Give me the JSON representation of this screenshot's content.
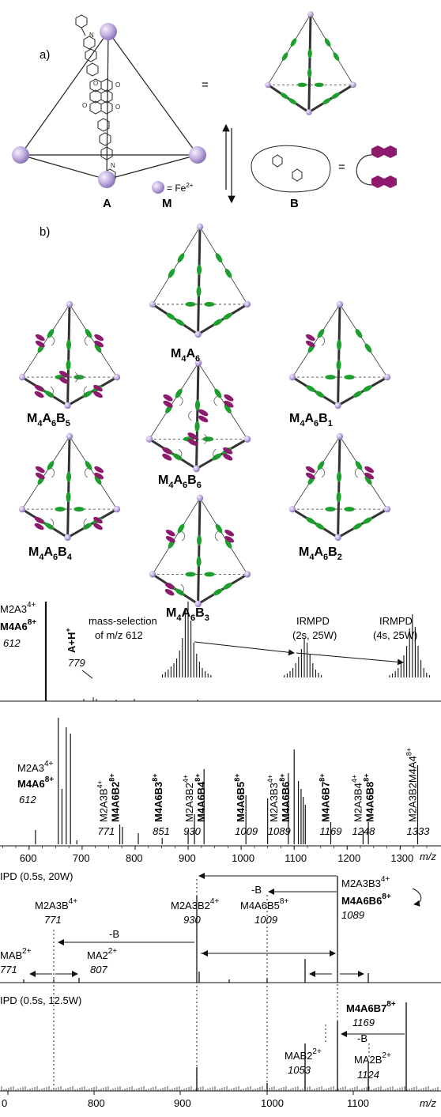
{
  "panel_a": {
    "label": "a)",
    "eq1": "=",
    "eq2": "=",
    "legend_fe": "= Fe",
    "legend_fe_sup": "2+",
    "label_A": "A",
    "label_M": "M",
    "label_B": "B"
  },
  "panel_b": {
    "label": "b)",
    "cages": [
      {
        "base": "M",
        "s1": "4",
        "mid": "A",
        "s2": "6",
        "tail": "",
        "s3": ""
      },
      {
        "base": "M",
        "s1": "4",
        "mid": "A",
        "s2": "6",
        "tail": "B",
        "s3": "5"
      },
      {
        "base": "M",
        "s1": "4",
        "mid": "A",
        "s2": "6",
        "tail": "B",
        "s3": "1"
      },
      {
        "base": "M",
        "s1": "4",
        "mid": "A",
        "s2": "6",
        "tail": "B",
        "s3": "6"
      },
      {
        "base": "M",
        "s1": "4",
        "mid": "A",
        "s2": "6",
        "tail": "B",
        "s3": "4"
      },
      {
        "base": "M",
        "s1": "4",
        "mid": "A",
        "s2": "6",
        "tail": "B",
        "s3": "2"
      },
      {
        "base": "M",
        "s1": "4",
        "mid": "A",
        "s2": "6",
        "tail": "B",
        "s3": "3"
      }
    ]
  },
  "spectrum1": {
    "peak_label_l1": "M2A3",
    "peak_label_l1_charge": "4+",
    "peak_label_l2": "M4A6",
    "peak_label_l2_charge": "8+",
    "peak_mz": "612",
    "ah_label": "A+H",
    "ah_charge": "+",
    "ah_mz": "779",
    "mass_sel_1": "mass-selection",
    "mass_sel_2": "of m/z 612",
    "irmpd_a_1": "IRMPD",
    "irmpd_a_2": "(2s, 25W)",
    "irmpd_b_1": "IRMPD",
    "irmpd_b_2": "(4s, 25W)"
  },
  "spectrum2": {
    "labels": [
      {
        "top": "M2A3",
        "topc": "4+",
        "bot": "M4A6",
        "botc": "8+",
        "mz": "612"
      },
      {
        "top": "M2A3B",
        "topc": "4+",
        "bot": "M4A6B2",
        "botc": "8+",
        "mz": "771"
      },
      {
        "top": "",
        "topc": "",
        "bot": "M4A6B3",
        "botc": "8+",
        "mz": "851"
      },
      {
        "top": "M2A3B2",
        "topc": "4+",
        "bot": "M4A6B4",
        "botc": "8+",
        "mz": "930"
      },
      {
        "top": "",
        "topc": "",
        "bot": "M4A6B5",
        "botc": "8+",
        "mz": "1009"
      },
      {
        "top": "M2A3B3",
        "topc": "4+",
        "bot": "M4A6B6",
        "botc": "8+",
        "mz": "1089"
      },
      {
        "top": "",
        "topc": "",
        "bot": "M4A6B7",
        "botc": "8+",
        "mz": "1169"
      },
      {
        "top": "M2A3B4",
        "topc": "4+",
        "bot": "M4A6B8",
        "botc": "8+",
        "mz": "1248"
      },
      {
        "top": "M2A3B2M4A4",
        "topc": "8+",
        "bot": "",
        "botc": "",
        "mz": "1333"
      }
    ],
    "x_ticks": [
      "600",
      "700",
      "800",
      "900",
      "1000",
      "1100",
      "1200",
      "1300"
    ],
    "x_unit": "m/z"
  },
  "spectrum3": {
    "title": "IPD (0.5s, 20W)",
    "parent_top": "M2A3B3",
    "parent_top_c": "4+",
    "parent_bot": "M4A6B6",
    "parent_bot_c": "8+",
    "parent_mz": "1089",
    "m2a3b": "M2A3B",
    "m2a3b_c": "4+",
    "m2a3b_mz": "771",
    "m2a3b2": "M2A3B2",
    "m2a3b2_c": "4+",
    "m2a3b2_mz": "930",
    "m4a6b5": "M4A6B5",
    "m4a6b5_c": "8+",
    "m4a6b5_mz": "1009",
    "mab": "MAB",
    "mab_c": "2+",
    "mab_mz": "771",
    "ma2": "MA2",
    "ma2_c": "2+",
    "ma2_mz": "807",
    "minus_b": "-B"
  },
  "spectrum4": {
    "title": "IPD (0.5s, 12.5W)",
    "parent": "M4A6B7",
    "parent_c": "8+",
    "parent_mz": "1169",
    "mab2": "MAB2",
    "mab2_c": "2+",
    "mab2_mz": "1053",
    "ma2b": "MA2B",
    "ma2b_c": "2+",
    "ma2b_mz": "1124",
    "minus_b": "-B",
    "x_ticks": [
      "0",
      "800",
      "900",
      "1000",
      "1100"
    ],
    "x_unit": "m/z"
  },
  "colors": {
    "green": "#1e9e2e",
    "magenta": "#8e1a6e",
    "vertex": "#b9a6dc",
    "ink": "#111111"
  }
}
